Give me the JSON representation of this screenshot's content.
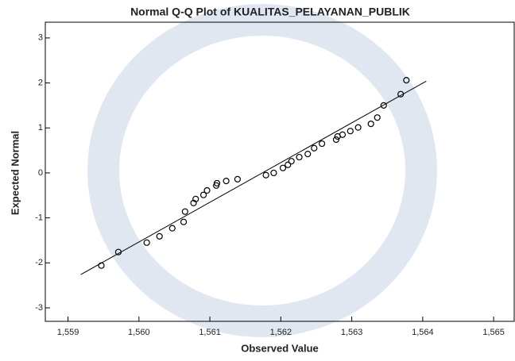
{
  "chart_data": {
    "type": "scatter",
    "title": "Normal Q-Q Plot of KUALITAS_PELAYANAN_PUBLIK",
    "x_label": "Observed Value",
    "y_label": "Expected Normal",
    "xlim": [
      1.55868,
      1.56529
    ],
    "ylim": [
      -3.3,
      3.35
    ],
    "xticks": [
      {
        "value": 1.559,
        "label": "1,559"
      },
      {
        "value": 1.56,
        "label": "1,560"
      },
      {
        "value": 1.561,
        "label": "1,561"
      },
      {
        "value": 1.562,
        "label": "1,562"
      },
      {
        "value": 1.563,
        "label": "1,563"
      },
      {
        "value": 1.564,
        "label": "1,564"
      },
      {
        "value": 1.565,
        "label": "1,565"
      }
    ],
    "yticks": [
      -3,
      -2,
      -1,
      0,
      1,
      2,
      3
    ],
    "series": [
      {
        "color": "#000000",
        "x": [
          1.55947,
          1.55971,
          1.56011,
          1.56029,
          1.56047,
          1.56063,
          1.56065,
          1.56077,
          1.5608,
          1.56091,
          1.56096,
          1.56109,
          1.5611,
          1.56123,
          1.56139,
          1.56179,
          1.5619,
          1.56203,
          1.5621,
          1.56215,
          1.56226,
          1.56238,
          1.56247,
          1.56258,
          1.56278,
          1.5628,
          1.56287,
          1.56298,
          1.56309,
          1.56327,
          1.56336,
          1.56345,
          1.56369,
          1.56377
        ],
        "values": [
          -2.06,
          -1.76,
          -1.55,
          -1.41,
          -1.23,
          -1.09,
          -0.86,
          -0.67,
          -0.58,
          -0.49,
          -0.39,
          -0.28,
          -0.23,
          -0.18,
          -0.14,
          -0.05,
          0.0,
          0.11,
          0.18,
          0.26,
          0.35,
          0.42,
          0.55,
          0.65,
          0.74,
          0.81,
          0.85,
          0.93,
          1.01,
          1.09,
          1.23,
          1.5,
          1.75,
          2.06
        ]
      }
    ],
    "fit_line": {
      "color": "#000000",
      "x": [
        1.55918,
        1.56405
      ],
      "y": [
        -2.26,
        2.04
      ]
    }
  }
}
